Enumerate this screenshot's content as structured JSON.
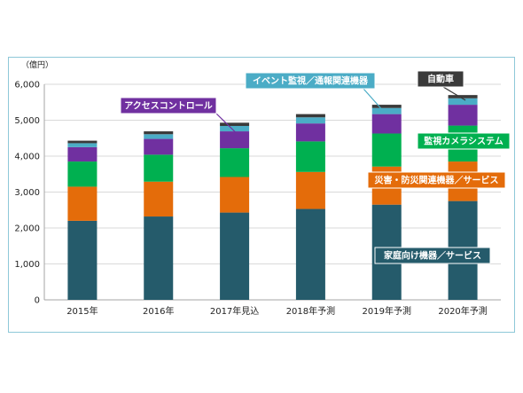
{
  "colors": {
    "home": "#255B6B",
    "disaster": "#E46C0A",
    "camera": "#00B050",
    "access": "#7030A0",
    "event": "#4BACC6",
    "vehicle": "#3A3A3A",
    "frame_border": "#8EC8D8",
    "grid": "#D9D9D9"
  },
  "chart_data": {
    "type": "bar",
    "stacked": true,
    "unit_label": "（億円）",
    "ylim": [
      0,
      6000
    ],
    "y_ticks": [
      "0",
      "1,000",
      "2,000",
      "3,000",
      "4,000",
      "5,000",
      "6,000"
    ],
    "categories": [
      "2015年",
      "2016年",
      "2017年見込",
      "2018年予測",
      "2019年予測",
      "2020年予測"
    ],
    "grid": true,
    "series": [
      {
        "name": "家庭向け機器／サービス",
        "color_key": "home",
        "values": [
          2200,
          2320,
          2430,
          2530,
          2650,
          2750
        ]
      },
      {
        "name": "災害・防災関連機器／サービス",
        "color_key": "disaster",
        "values": [
          950,
          970,
          990,
          1030,
          1060,
          1100
        ]
      },
      {
        "name": "監視カメラシステム",
        "color_key": "camera",
        "values": [
          700,
          750,
          800,
          850,
          920,
          1000
        ]
      },
      {
        "name": "アクセスコントロール",
        "color_key": "access",
        "values": [
          400,
          440,
          470,
          500,
          540,
          580
        ]
      },
      {
        "name": "イベント監視／通報関連機器",
        "color_key": "event",
        "values": [
          110,
          130,
          150,
          170,
          170,
          180
        ]
      },
      {
        "name": "自動車",
        "color_key": "vehicle",
        "values": [
          70,
          80,
          90,
          90,
          90,
          90
        ]
      }
    ],
    "callouts": [
      {
        "text": "家庭向け機器／サービス",
        "color_key": "home",
        "text_color": "#ffffff",
        "position": "lower-right, over 2020年予測"
      },
      {
        "text": "災害・防災関連機器／サービス",
        "color_key": "disaster",
        "text_color": "#ffffff",
        "position": "right, over 2020年予測"
      },
      {
        "text": "監視カメラシステム",
        "color_key": "camera",
        "text_color": "#ffffff",
        "position": "right"
      },
      {
        "text": "アクセスコントロール",
        "color_key": "access",
        "text_color": "#ffffff",
        "position": "top-left, pointing to 2017年見込"
      },
      {
        "text": "イベント監視／通報関連機器",
        "color_key": "event",
        "text_color": "#ffffff",
        "position": "top-center, pointing to 2019年予測"
      },
      {
        "text": "自動車",
        "color_key": "vehicle",
        "text_color": "#ffffff",
        "position": "top-right, pointing to 2020年予測"
      }
    ]
  }
}
